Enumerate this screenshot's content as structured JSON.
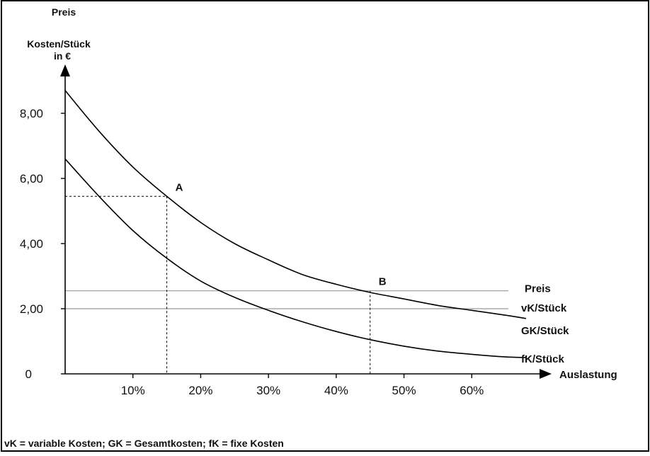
{
  "chart_data": {
    "type": "line",
    "title": "",
    "ylabel_lines": [
      "Preis",
      "Kosten/Stück",
      "in €"
    ],
    "xlabel": "Auslastung",
    "xlim": [
      0,
      70
    ],
    "ylim": [
      0,
      9.5
    ],
    "x_ticks": [
      {
        "value": 10,
        "label": "10%"
      },
      {
        "value": 20,
        "label": "20%"
      },
      {
        "value": 30,
        "label": "30%"
      },
      {
        "value": 40,
        "label": "40%"
      },
      {
        "value": 50,
        "label": "50%"
      },
      {
        "value": 60,
        "label": "60%"
      }
    ],
    "y_ticks": [
      {
        "value": 0,
        "label": "0"
      },
      {
        "value": 2,
        "label": "2,00"
      },
      {
        "value": 4,
        "label": "4,00"
      },
      {
        "value": 6,
        "label": "6,00"
      },
      {
        "value": 8,
        "label": "8,00"
      }
    ],
    "series": [
      {
        "name": "GK/Stück",
        "color": "#000000",
        "x": [
          0,
          5,
          10,
          15,
          20,
          25,
          30,
          35,
          40,
          45,
          50,
          55,
          60,
          65,
          68
        ],
        "y": [
          8.7,
          7.45,
          6.35,
          5.45,
          4.65,
          4.0,
          3.5,
          3.05,
          2.75,
          2.5,
          2.3,
          2.1,
          1.95,
          1.8,
          1.7
        ]
      },
      {
        "name": "fK/Stück",
        "color": "#000000",
        "x": [
          0,
          5,
          10,
          15,
          20,
          25,
          30,
          35,
          40,
          45,
          50,
          55,
          60,
          65,
          68
        ],
        "y": [
          6.6,
          5.45,
          4.4,
          3.55,
          2.85,
          2.35,
          1.95,
          1.6,
          1.3,
          1.05,
          0.85,
          0.7,
          0.6,
          0.52,
          0.5
        ]
      }
    ],
    "hlines": [
      {
        "name": "Preis",
        "y": 2.55,
        "color": "#999999"
      },
      {
        "name": "vK/Stück",
        "y": 2.0,
        "color": "#999999"
      }
    ],
    "points": [
      {
        "label": "A",
        "x": 15,
        "y": 5.45
      },
      {
        "label": "B",
        "x": 45,
        "y": 2.55
      }
    ],
    "footnote": "vK = variable Kosten; GK = Gesamtkosten; fK = fixe Kosten"
  }
}
